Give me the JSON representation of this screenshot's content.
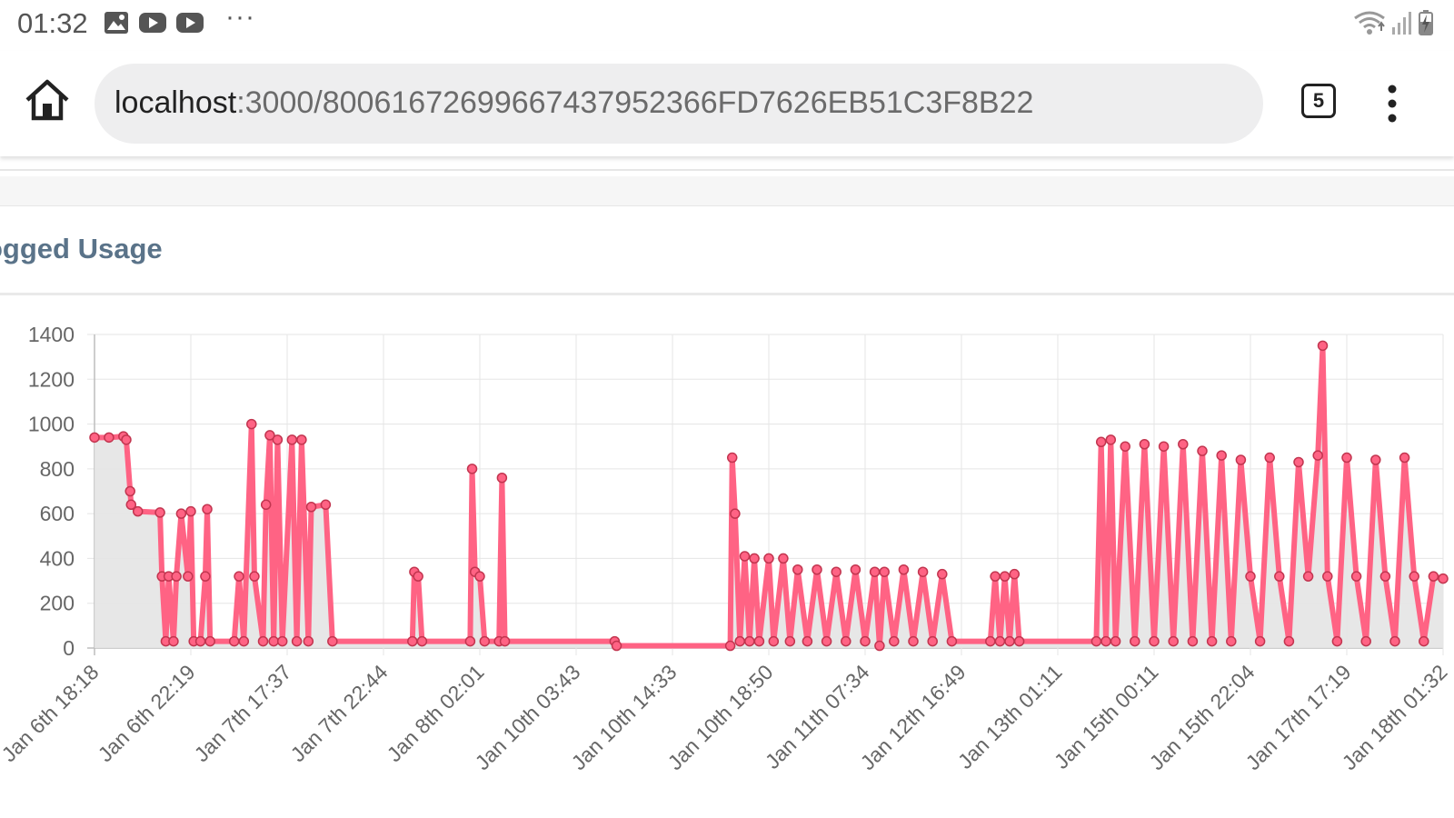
{
  "status_bar": {
    "time": "01:32",
    "icons": [
      "image-icon",
      "youtube-icon",
      "youtube-icon",
      "more-icon"
    ],
    "more": "···",
    "system_icons": [
      "wifi-icon",
      "signal-icon",
      "battery-charging-icon"
    ]
  },
  "browser": {
    "url_host": "localhost",
    "url_path": ":3000/80061672699667437952366FD7626EB51C3F8B22",
    "tab_count": "5",
    "home_icon": "home-icon",
    "menu_icon": "more-vert-icon"
  },
  "card": {
    "title": "ogged Usage"
  },
  "colors": {
    "line": "#ff6384",
    "point_fill": "#ff6384",
    "area_fill": "#e4e4e4",
    "title": "#5a7389",
    "grid": "#e5e5e5"
  },
  "chart_data": {
    "type": "area",
    "title": "",
    "xlabel": "",
    "ylabel": "",
    "ylim": [
      0,
      1400
    ],
    "yticks": [
      0,
      200,
      400,
      600,
      800,
      1000,
      1200,
      1400
    ],
    "xticks": [
      "Jan 6th 18:18",
      "Jan 6th 22:19",
      "Jan 7th 17:37",
      "Jan 7th 22:44",
      "Jan 8th 02:01",
      "Jan 10th 03:43",
      "Jan 10th 14:33",
      "Jan 10th 18:50",
      "Jan 11th 07:34",
      "Jan 12th 16:49",
      "Jan 13th 01:11",
      "Jan 15th 00:11",
      "Jan 15th 22:04",
      "Jan 17th 17:19",
      "Jan 18th 01:32"
    ],
    "grid": true,
    "legend": "none",
    "note_x": "point index positions along the category axis (0 = Jan 6th 18:18, 14 = Jan 18th 01:32)",
    "series": [
      {
        "values": [
          [
            0.0,
            940
          ],
          [
            0.15,
            940
          ],
          [
            0.3,
            945
          ],
          [
            0.33,
            930
          ],
          [
            0.37,
            700
          ],
          [
            0.38,
            640
          ],
          [
            0.45,
            610
          ],
          [
            0.68,
            605
          ],
          [
            0.7,
            320
          ],
          [
            0.74,
            30
          ],
          [
            0.77,
            320
          ],
          [
            0.82,
            30
          ],
          [
            0.85,
            320
          ],
          [
            0.9,
            600
          ],
          [
            0.97,
            320
          ],
          [
            1.0,
            610
          ],
          [
            1.03,
            30
          ],
          [
            1.1,
            30
          ],
          [
            1.15,
            320
          ],
          [
            1.17,
            620
          ],
          [
            1.2,
            30
          ],
          [
            1.45,
            30
          ],
          [
            1.5,
            320
          ],
          [
            1.55,
            30
          ],
          [
            1.63,
            1000
          ],
          [
            1.66,
            320
          ],
          [
            1.75,
            30
          ],
          [
            1.78,
            640
          ],
          [
            1.82,
            950
          ],
          [
            1.86,
            30
          ],
          [
            1.9,
            930
          ],
          [
            1.95,
            30
          ],
          [
            2.05,
            930
          ],
          [
            2.1,
            30
          ],
          [
            2.15,
            930
          ],
          [
            2.22,
            30
          ],
          [
            2.25,
            630
          ],
          [
            2.4,
            640
          ],
          [
            2.47,
            30
          ],
          [
            3.3,
            30
          ],
          [
            3.32,
            340
          ],
          [
            3.36,
            320
          ],
          [
            3.4,
            30
          ],
          [
            3.9,
            30
          ],
          [
            3.92,
            800
          ],
          [
            3.95,
            340
          ],
          [
            4.0,
            320
          ],
          [
            4.05,
            30
          ],
          [
            4.2,
            30
          ],
          [
            4.23,
            760
          ],
          [
            4.26,
            30
          ],
          [
            5.4,
            30
          ],
          [
            5.42,
            10
          ],
          [
            6.6,
            10
          ],
          [
            6.62,
            850
          ],
          [
            6.65,
            600
          ],
          [
            6.7,
            30
          ],
          [
            6.75,
            410
          ],
          [
            6.8,
            30
          ],
          [
            6.85,
            400
          ],
          [
            6.9,
            30
          ],
          [
            7.0,
            400
          ],
          [
            7.05,
            30
          ],
          [
            7.15,
            400
          ],
          [
            7.22,
            30
          ],
          [
            7.3,
            350
          ],
          [
            7.4,
            30
          ],
          [
            7.5,
            350
          ],
          [
            7.6,
            30
          ],
          [
            7.7,
            340
          ],
          [
            7.8,
            30
          ],
          [
            7.9,
            350
          ],
          [
            8.0,
            30
          ],
          [
            8.1,
            340
          ],
          [
            8.15,
            10
          ],
          [
            8.2,
            340
          ],
          [
            8.3,
            30
          ],
          [
            8.4,
            350
          ],
          [
            8.5,
            30
          ],
          [
            8.6,
            340
          ],
          [
            8.7,
            30
          ],
          [
            8.8,
            330
          ],
          [
            8.9,
            30
          ],
          [
            9.3,
            30
          ],
          [
            9.35,
            320
          ],
          [
            9.4,
            30
          ],
          [
            9.45,
            320
          ],
          [
            9.5,
            30
          ],
          [
            9.55,
            330
          ],
          [
            9.6,
            30
          ],
          [
            10.4,
            30
          ],
          [
            10.45,
            920
          ],
          [
            10.5,
            30
          ],
          [
            10.55,
            930
          ],
          [
            10.6,
            30
          ],
          [
            10.7,
            900
          ],
          [
            10.8,
            30
          ],
          [
            10.9,
            910
          ],
          [
            11.0,
            30
          ],
          [
            11.1,
            900
          ],
          [
            11.2,
            30
          ],
          [
            11.3,
            910
          ],
          [
            11.4,
            30
          ],
          [
            11.5,
            880
          ],
          [
            11.6,
            30
          ],
          [
            11.7,
            860
          ],
          [
            11.8,
            30
          ],
          [
            11.9,
            840
          ],
          [
            12.0,
            320
          ],
          [
            12.1,
            30
          ],
          [
            12.2,
            850
          ],
          [
            12.3,
            320
          ],
          [
            12.4,
            30
          ],
          [
            12.5,
            830
          ],
          [
            12.6,
            320
          ],
          [
            12.7,
            860
          ],
          [
            12.75,
            1350
          ],
          [
            12.8,
            320
          ],
          [
            12.9,
            30
          ],
          [
            13.0,
            850
          ],
          [
            13.1,
            320
          ],
          [
            13.2,
            30
          ],
          [
            13.3,
            840
          ],
          [
            13.4,
            320
          ],
          [
            13.5,
            30
          ],
          [
            13.6,
            850
          ],
          [
            13.7,
            320
          ],
          [
            13.8,
            30
          ],
          [
            13.9,
            320
          ],
          [
            14.0,
            310
          ]
        ]
      }
    ]
  }
}
